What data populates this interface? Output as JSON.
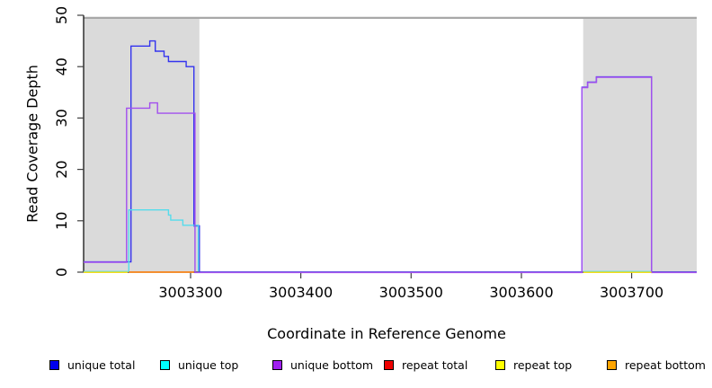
{
  "chart_data": {
    "type": "line",
    "title": "",
    "xlabel": "Coordinate in Reference Genome",
    "ylabel": "Read Coverage Depth",
    "xlim": [
      3003203,
      3003759
    ],
    "ylim": [
      0,
      50
    ],
    "x_ticks": [
      3003300,
      3003400,
      3003500,
      3003600,
      3003700
    ],
    "y_ticks": [
      0,
      10,
      20,
      30,
      40,
      50
    ],
    "grid": false,
    "legend_position": "bottom",
    "shade_color": "#dadada",
    "shade_cap_y": 49.5,
    "shade_cap_color": "#a8a8a8",
    "shaded_regions": [
      {
        "x0": 3003203,
        "x1": 3003308
      },
      {
        "x0": 3003656,
        "x1": 3003759
      }
    ],
    "series": [
      {
        "name": "unique total",
        "legend_color": "#0000ee",
        "line_color": "#3434ee",
        "segments": [
          [
            [
              3003203,
              2
            ],
            [
              3003246,
              2
            ],
            [
              3003246,
              44
            ],
            [
              3003263,
              44
            ],
            [
              3003263,
              45
            ],
            [
              3003268,
              45
            ],
            [
              3003268,
              43
            ],
            [
              3003276,
              43
            ],
            [
              3003276,
              42
            ],
            [
              3003280,
              42
            ],
            [
              3003280,
              41
            ],
            [
              3003296,
              41
            ],
            [
              3003296,
              40
            ],
            [
              3003303,
              40
            ],
            [
              3003303,
              9
            ],
            [
              3003308,
              9
            ],
            [
              3003308,
              0
            ],
            [
              3003655,
              0
            ],
            [
              3003655,
              36
            ],
            [
              3003660,
              36
            ],
            [
              3003660,
              37
            ],
            [
              3003668,
              37
            ],
            [
              3003668,
              38
            ],
            [
              3003718,
              38
            ],
            [
              3003718,
              0
            ],
            [
              3003759,
              0
            ]
          ]
        ]
      },
      {
        "name": "unique top",
        "legend_color": "#00ffff",
        "line_color": "#55dcec",
        "segments": [
          [
            [
              3003203,
              0
            ],
            [
              3003244,
              0
            ],
            [
              3003244,
              12
            ],
            [
              3003280,
              12
            ],
            [
              3003280,
              11
            ],
            [
              3003282,
              11
            ],
            [
              3003282,
              10
            ],
            [
              3003293,
              10
            ],
            [
              3003293,
              9
            ],
            [
              3003307,
              9
            ],
            [
              3003307,
              0
            ]
          ],
          [
            [
              3003656,
              0
            ],
            [
              3003718,
              0
            ]
          ]
        ]
      },
      {
        "name": "unique bottom",
        "legend_color": "#a020f0",
        "line_color": "#a24fee",
        "segments": [
          [
            [
              3003203,
              2
            ],
            [
              3003242,
              2
            ],
            [
              3003242,
              32
            ],
            [
              3003263,
              32
            ],
            [
              3003263,
              33
            ],
            [
              3003270,
              33
            ],
            [
              3003270,
              31
            ],
            [
              3003304,
              31
            ],
            [
              3003304,
              0
            ],
            [
              3003655,
              0
            ],
            [
              3003655,
              36
            ],
            [
              3003660,
              36
            ],
            [
              3003660,
              37
            ],
            [
              3003668,
              37
            ],
            [
              3003668,
              38
            ],
            [
              3003718,
              38
            ],
            [
              3003718,
              0
            ],
            [
              3003759,
              0
            ]
          ]
        ]
      },
      {
        "name": "repeat total",
        "legend_color": "#ee0000",
        "line_color": "#ee2222",
        "segments": [
          [
            [
              3003244,
              0
            ],
            [
              3003303,
              0
            ]
          ]
        ]
      },
      {
        "name": "repeat top",
        "legend_color": "#ffff00",
        "line_color": "#ffe000",
        "segments": [
          [
            [
              3003203,
              0
            ],
            [
              3003243,
              0
            ]
          ],
          [
            [
              3003656,
              0
            ],
            [
              3003718,
              0
            ]
          ]
        ]
      },
      {
        "name": "repeat bottom",
        "legend_color": "#ffa500",
        "line_color": "#ff9a1e",
        "segments": [
          [
            [
              3003244,
              0
            ],
            [
              3003303,
              0
            ]
          ]
        ]
      }
    ]
  }
}
